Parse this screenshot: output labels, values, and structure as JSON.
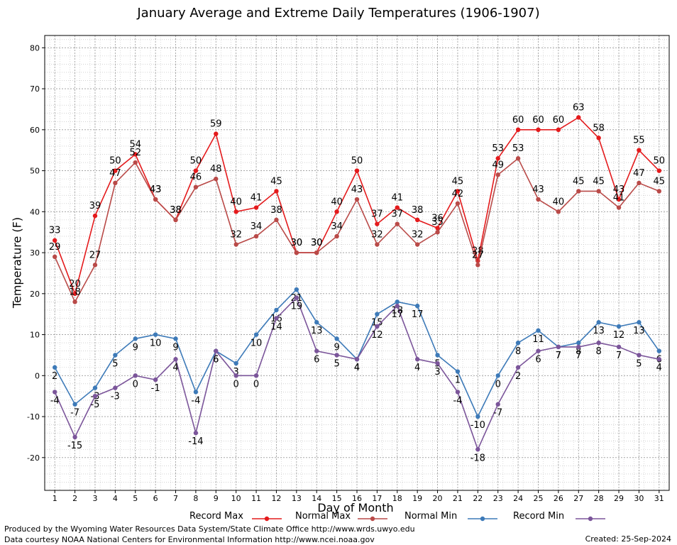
{
  "chart_data": {
    "type": "line",
    "title": "January Average and Extreme Daily Temperatures (1906-1907)",
    "xlabel": "Day of Month",
    "ylabel": "Temperature (F)",
    "x": [
      1,
      2,
      3,
      4,
      5,
      6,
      7,
      8,
      9,
      10,
      11,
      12,
      13,
      14,
      15,
      16,
      17,
      18,
      19,
      20,
      21,
      22,
      23,
      24,
      25,
      26,
      27,
      28,
      29,
      30,
      31
    ],
    "xlim": [
      0.5,
      31.5
    ],
    "ylim": [
      -28,
      83
    ],
    "yticks": [
      -20,
      -10,
      0,
      10,
      20,
      30,
      40,
      50,
      60,
      70,
      80
    ],
    "grid": true,
    "legend_position": "bottom",
    "series": [
      {
        "name": "Record Max",
        "color": "#e41a1c",
        "values": [
          33,
          20,
          39,
          50,
          54,
          43,
          38,
          50,
          59,
          40,
          41,
          45,
          30,
          30,
          40,
          50,
          37,
          41,
          38,
          36,
          45,
          28,
          53,
          60,
          60,
          60,
          63,
          58,
          43,
          55,
          50
        ]
      },
      {
        "name": "Normal Max",
        "color": "#b94a48",
        "values": [
          29,
          18,
          27,
          47,
          52,
          43,
          38,
          46,
          48,
          32,
          34,
          38,
          30,
          30,
          34,
          43,
          32,
          37,
          32,
          35,
          42,
          27,
          49,
          53,
          43,
          40,
          45,
          45,
          41,
          47,
          45
        ]
      },
      {
        "name": "Normal Min",
        "color": "#3d7ab8",
        "values": [
          2,
          -7,
          -3,
          5,
          9,
          10,
          9,
          -4,
          6,
          3,
          10,
          16,
          21,
          13,
          9,
          4,
          15,
          18,
          17,
          5,
          1,
          -10,
          0,
          8,
          11,
          7,
          8,
          13,
          12,
          13,
          6
        ]
      },
      {
        "name": "Record Min",
        "color": "#7b559a",
        "values": [
          -4,
          -15,
          -5,
          -3,
          0,
          -1,
          4,
          -14,
          6,
          0,
          0,
          14,
          19,
          6,
          5,
          4,
          12,
          17,
          4,
          3,
          -4,
          -18,
          -7,
          2,
          6,
          7,
          7,
          8,
          7,
          5,
          4
        ]
      }
    ]
  },
  "footer": {
    "line1": "Produced by the Wyoming Water Resources Data System/State Climate Office http://www.wrds.uwyo.edu",
    "line2": "Data courtesy NOAA National Centers for Environmental Information http://www.ncei.noaa.gov",
    "created": "Created:  25-Sep-2024"
  }
}
